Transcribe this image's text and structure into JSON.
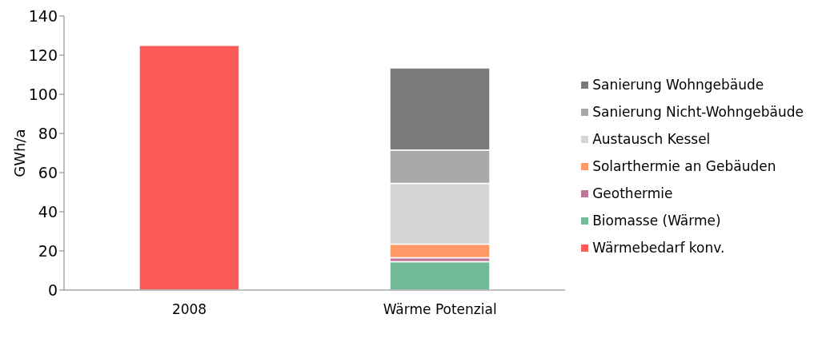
{
  "chart_data": {
    "type": "bar",
    "stacked": true,
    "ylabel": "GWh/a",
    "categories": [
      "2008",
      "Wärme Potenzial"
    ],
    "series": [
      {
        "name": "Wärmebedarf konv.",
        "color": "#ff5a5a",
        "values": [
          125,
          null
        ]
      },
      {
        "name": "Biomasse (Wärme)",
        "color": "#72bb99",
        "values": [
          null,
          14.5
        ]
      },
      {
        "name": "Geothermie",
        "color": "#c07898",
        "values": [
          null,
          2
        ]
      },
      {
        "name": "Solarthermie an Gebäuden",
        "color": "#ff9a66",
        "values": [
          null,
          7
        ]
      },
      {
        "name": "Austausch Kessel",
        "color": "#d6d6d6",
        "values": [
          null,
          31
        ]
      },
      {
        "name": "Sanierung Nicht-Wohngebäude",
        "color": "#a8a8a8",
        "values": [
          null,
          17
        ]
      },
      {
        "name": "Sanierung Wohngebäude",
        "color": "#7a7a7a",
        "values": [
          null,
          42
        ]
      }
    ],
    "ylim": [
      0,
      140
    ],
    "yticks": [
      0,
      20,
      40,
      60,
      80,
      100,
      120,
      140
    ],
    "grid": false,
    "legend": "right"
  }
}
